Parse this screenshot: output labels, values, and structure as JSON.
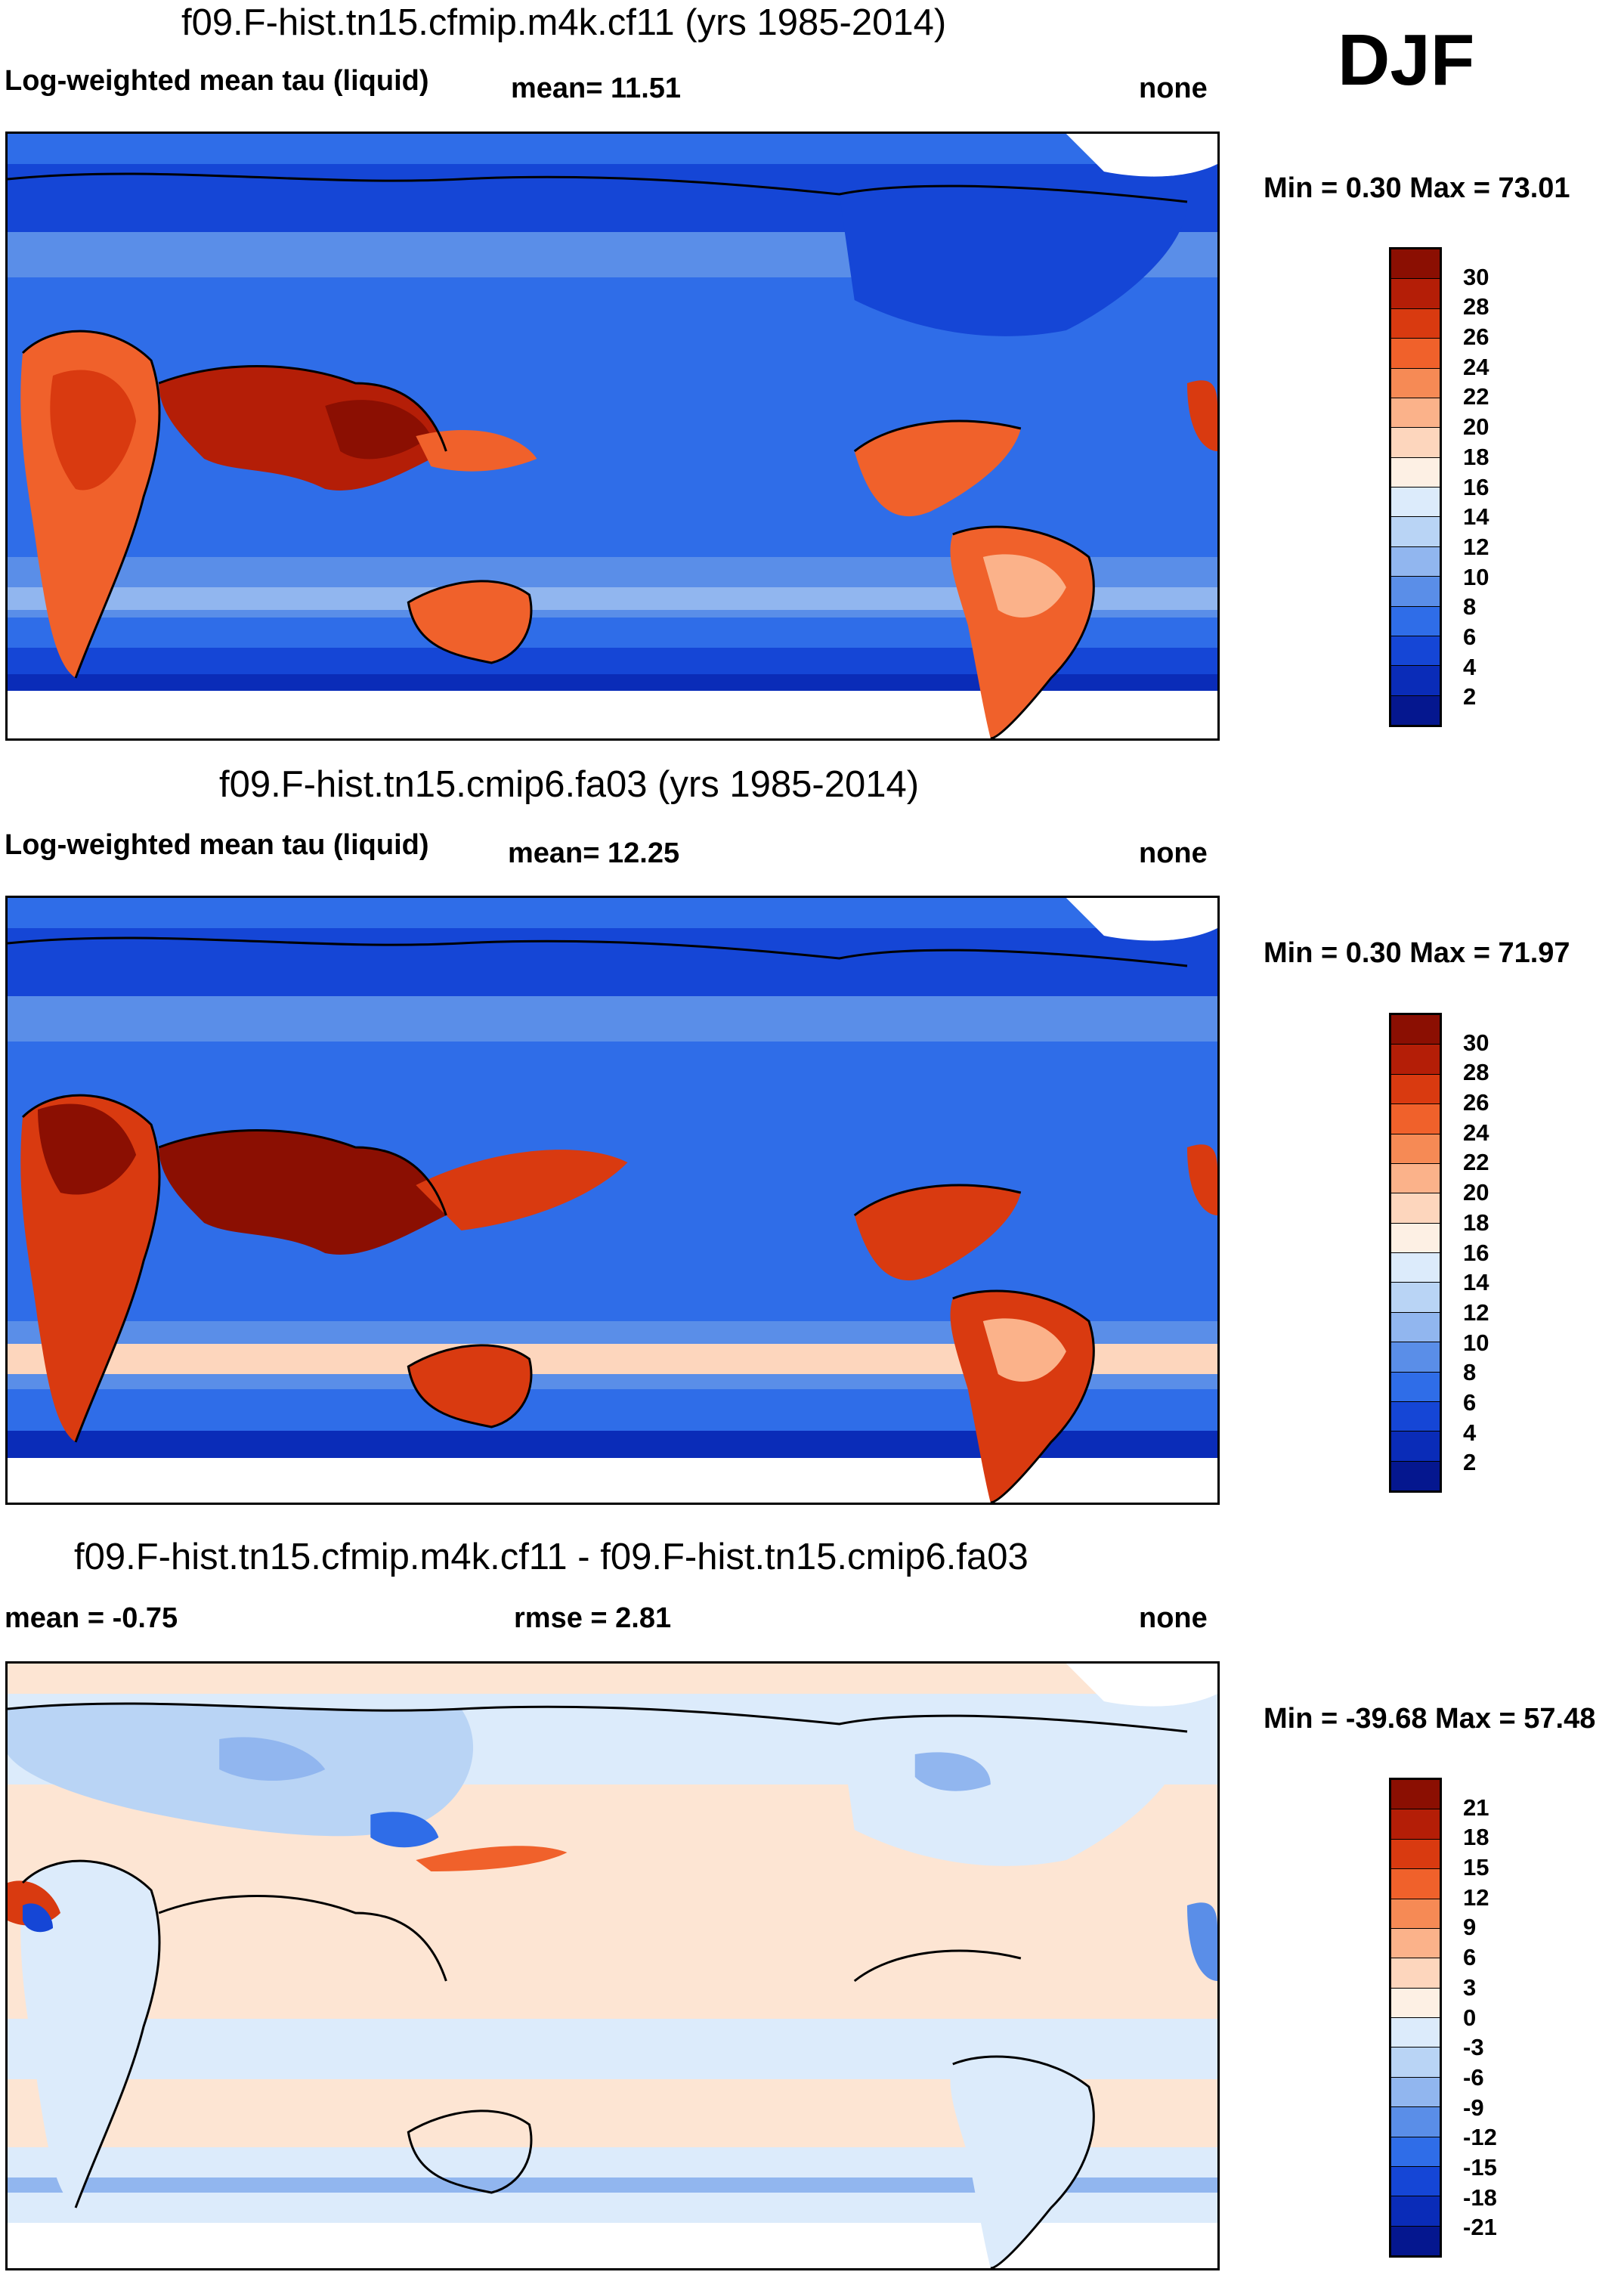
{
  "season": "DJF",
  "panels": [
    {
      "id": "top",
      "title": "f09.F-hist.tn15.cfmip.m4k.cf11 (yrs 1985-2014)",
      "left_label": "Log-weighted mean tau (liquid)",
      "center_label": "mean=  11.51",
      "right_label": "none",
      "minmax": "Min =   0.30 Max =  73.01",
      "colorbar_labels": [
        "30",
        "28",
        "26",
        "24",
        "22",
        "20",
        "18",
        "16",
        "14",
        "12",
        "10",
        "8",
        "6",
        "4",
        "2"
      ],
      "colorbar_colors": [
        "#8b0f02",
        "#b41e07",
        "#d93a10",
        "#f0612b",
        "#f68a55",
        "#fbb28a",
        "#fdd6bd",
        "#fdf0e4",
        "#dcebfb",
        "#b9d4f5",
        "#91b6ef",
        "#5a8ee8",
        "#2f6de8",
        "#1546d6",
        "#0a2cb8",
        "#05178f"
      ]
    },
    {
      "id": "middle",
      "title": "f09.F-hist.tn15.cmip6.fa03 (yrs 1985-2014)",
      "left_label": "Log-weighted mean tau (liquid)",
      "center_label": "mean=  12.25",
      "right_label": "none",
      "minmax": "Min =   0.30 Max =  71.97",
      "colorbar_labels": [
        "30",
        "28",
        "26",
        "24",
        "22",
        "20",
        "18",
        "16",
        "14",
        "12",
        "10",
        "8",
        "6",
        "4",
        "2"
      ],
      "colorbar_colors": [
        "#8b0f02",
        "#b41e07",
        "#d93a10",
        "#f0612b",
        "#f68a55",
        "#fbb28a",
        "#fdd6bd",
        "#fdf0e4",
        "#dcebfb",
        "#b9d4f5",
        "#91b6ef",
        "#5a8ee8",
        "#2f6de8",
        "#1546d6",
        "#0a2cb8",
        "#05178f"
      ]
    },
    {
      "id": "bottom",
      "title": "f09.F-hist.tn15.cfmip.m4k.cf11 - f09.F-hist.tn15.cmip6.fa03",
      "left_label": "mean =  -0.75",
      "center_label": "rmse =   2.81",
      "right_label": "none",
      "minmax": "Min = -39.68 Max =  57.48",
      "colorbar_labels": [
        "21",
        "18",
        "15",
        "12",
        "9",
        "6",
        "3",
        "0",
        "-3",
        "-6",
        "-9",
        "-12",
        "-15",
        "-18",
        "-21"
      ],
      "colorbar_colors": [
        "#8b0f02",
        "#b41e07",
        "#d93a10",
        "#f0612b",
        "#f68a55",
        "#fbb28a",
        "#fdd6bd",
        "#fdf0e4",
        "#dcebfb",
        "#b9d4f5",
        "#91b6ef",
        "#5a8ee8",
        "#2f6de8",
        "#1546d6",
        "#0a2cb8",
        "#05178f"
      ]
    }
  ]
}
